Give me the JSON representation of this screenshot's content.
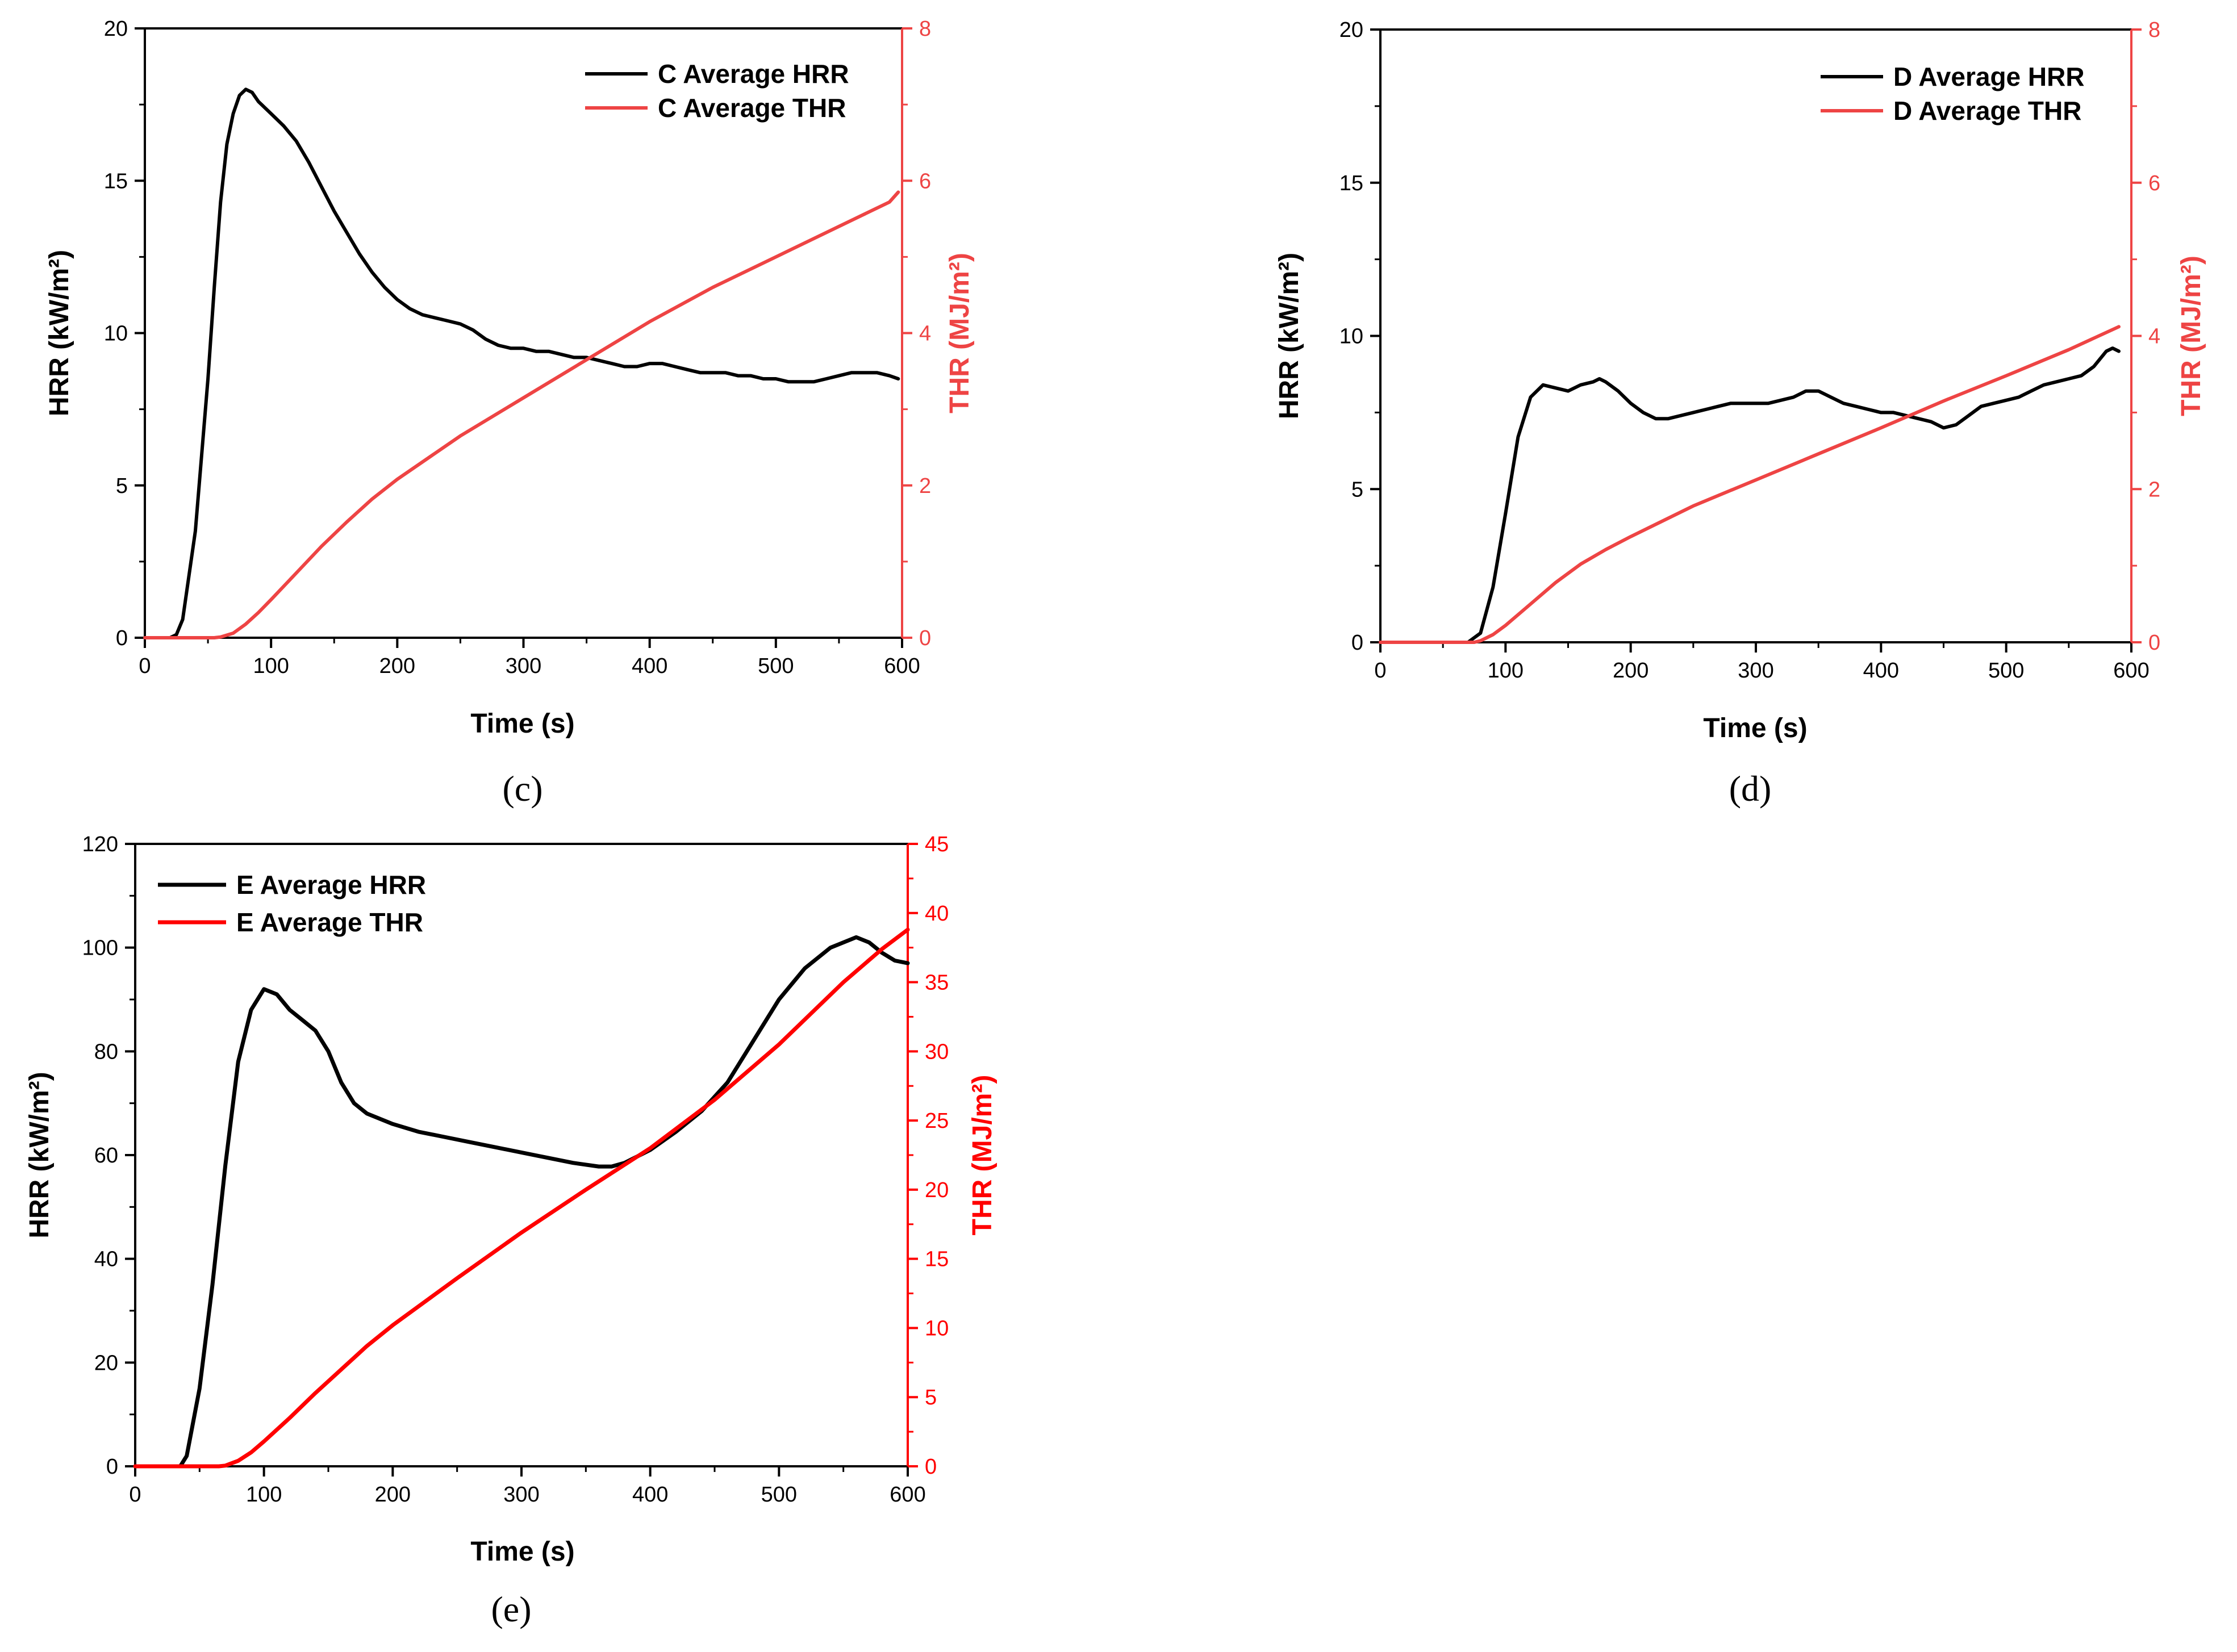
{
  "colors": {
    "hrr": "#000000",
    "thr_cd": "#ee4444",
    "thr_e": "#ff0000",
    "frame": "#000000"
  },
  "chart_data": [
    {
      "id": "c",
      "type": "line",
      "caption": "(c)",
      "xlabel": "Time (s)",
      "ylabel": "HRR (kW/m²)",
      "y2label": "THR (MJ/m²)",
      "xlim": [
        0,
        600
      ],
      "ylim": [
        0,
        20
      ],
      "y2lim": [
        0,
        8
      ],
      "xticks": [
        0,
        100,
        200,
        300,
        400,
        500,
        600
      ],
      "yticks": [
        0,
        5,
        10,
        15,
        20
      ],
      "y2ticks": [
        0,
        2,
        4,
        6,
        8
      ],
      "legend_position": "top-right",
      "series": [
        {
          "name": "C  Average HRR",
          "axis": "left",
          "x": [
            0,
            20,
            25,
            30,
            40,
            50,
            55,
            60,
            65,
            70,
            75,
            80,
            85,
            90,
            100,
            110,
            120,
            130,
            140,
            150,
            160,
            170,
            180,
            190,
            200,
            210,
            220,
            230,
            240,
            250,
            260,
            270,
            280,
            290,
            300,
            310,
            320,
            330,
            340,
            350,
            360,
            370,
            380,
            390,
            400,
            410,
            420,
            430,
            440,
            450,
            460,
            470,
            480,
            490,
            500,
            510,
            520,
            530,
            540,
            550,
            560,
            570,
            580,
            590,
            597
          ],
          "values": [
            0,
            0,
            0.1,
            0.6,
            3.5,
            8.5,
            11.5,
            14.3,
            16.2,
            17.2,
            17.8,
            18.0,
            17.9,
            17.6,
            17.2,
            16.8,
            16.3,
            15.6,
            14.8,
            14.0,
            13.3,
            12.6,
            12.0,
            11.5,
            11.1,
            10.8,
            10.6,
            10.5,
            10.4,
            10.3,
            10.1,
            9.8,
            9.6,
            9.5,
            9.5,
            9.4,
            9.4,
            9.3,
            9.2,
            9.2,
            9.1,
            9.0,
            8.9,
            8.9,
            9.0,
            9.0,
            8.9,
            8.8,
            8.7,
            8.7,
            8.7,
            8.6,
            8.6,
            8.5,
            8.5,
            8.4,
            8.4,
            8.4,
            8.5,
            8.6,
            8.7,
            8.7,
            8.7,
            8.6,
            8.5
          ]
        },
        {
          "name": "C  Average THR",
          "axis": "right",
          "x": [
            0,
            55,
            60,
            70,
            80,
            90,
            100,
            120,
            140,
            160,
            180,
            200,
            250,
            300,
            350,
            400,
            450,
            500,
            550,
            590,
            597
          ],
          "values": [
            0,
            0,
            0.01,
            0.06,
            0.18,
            0.33,
            0.5,
            0.85,
            1.2,
            1.52,
            1.82,
            2.08,
            2.65,
            3.15,
            3.65,
            4.15,
            4.6,
            5.0,
            5.4,
            5.72,
            5.85
          ]
        }
      ]
    },
    {
      "id": "d",
      "type": "line",
      "caption": "(d)",
      "xlabel": "Time (s)",
      "ylabel": "HRR (kW/m²)",
      "y2label": "THR (MJ/m²)",
      "xlim": [
        0,
        600
      ],
      "ylim": [
        0,
        20
      ],
      "y2lim": [
        0,
        8
      ],
      "xticks": [
        0,
        100,
        200,
        300,
        400,
        500,
        600
      ],
      "yticks": [
        0,
        5,
        10,
        15,
        20
      ],
      "y2ticks": [
        0,
        2,
        4,
        6,
        8
      ],
      "legend_position": "top-right",
      "series": [
        {
          "name": "D  Average HRR",
          "axis": "left",
          "x": [
            0,
            70,
            80,
            90,
            100,
            110,
            120,
            130,
            140,
            150,
            160,
            170,
            175,
            180,
            190,
            200,
            210,
            220,
            230,
            240,
            250,
            260,
            270,
            280,
            290,
            300,
            310,
            320,
            330,
            340,
            350,
            360,
            370,
            380,
            390,
            400,
            410,
            420,
            430,
            440,
            450,
            460,
            470,
            480,
            490,
            500,
            510,
            520,
            530,
            540,
            550,
            560,
            570,
            580,
            585,
            590
          ],
          "values": [
            0,
            0,
            0.3,
            1.8,
            4.2,
            6.7,
            8.0,
            8.4,
            8.3,
            8.2,
            8.4,
            8.5,
            8.6,
            8.5,
            8.2,
            7.8,
            7.5,
            7.3,
            7.3,
            7.4,
            7.5,
            7.6,
            7.7,
            7.8,
            7.8,
            7.8,
            7.8,
            7.9,
            8.0,
            8.2,
            8.2,
            8.0,
            7.8,
            7.7,
            7.6,
            7.5,
            7.5,
            7.4,
            7.3,
            7.2,
            7.0,
            7.1,
            7.4,
            7.7,
            7.8,
            7.9,
            8.0,
            8.2,
            8.4,
            8.5,
            8.6,
            8.7,
            9.0,
            9.5,
            9.6,
            9.5
          ]
        },
        {
          "name": "D  Average THR",
          "axis": "right",
          "x": [
            0,
            75,
            80,
            90,
            100,
            120,
            140,
            160,
            180,
            200,
            250,
            300,
            350,
            400,
            450,
            500,
            550,
            590
          ],
          "values": [
            0,
            0,
            0.02,
            0.1,
            0.22,
            0.5,
            0.78,
            1.02,
            1.21,
            1.38,
            1.78,
            2.12,
            2.46,
            2.8,
            3.15,
            3.48,
            3.82,
            4.12
          ]
        }
      ]
    },
    {
      "id": "e",
      "type": "line",
      "caption": "(e)",
      "xlabel": "Time (s)",
      "ylabel": "HRR (kW/m²)",
      "y2label": "THR (MJ/m²)",
      "xlim": [
        0,
        600
      ],
      "ylim": [
        0,
        120
      ],
      "y2lim": [
        0,
        45
      ],
      "xticks": [
        0,
        100,
        200,
        300,
        400,
        500,
        600
      ],
      "yticks": [
        0,
        20,
        40,
        60,
        80,
        100,
        120
      ],
      "y2ticks": [
        0,
        5,
        10,
        15,
        20,
        25,
        30,
        35,
        40,
        45
      ],
      "legend_position": "top-left",
      "series": [
        {
          "name": "E Average HRR",
          "axis": "left",
          "x": [
            0,
            35,
            40,
            50,
            60,
            70,
            80,
            90,
            100,
            110,
            120,
            130,
            140,
            150,
            160,
            170,
            180,
            200,
            220,
            240,
            260,
            280,
            300,
            320,
            340,
            360,
            370,
            380,
            400,
            420,
            440,
            460,
            480,
            500,
            520,
            540,
            560,
            570,
            580,
            590,
            600
          ],
          "values": [
            0,
            0,
            2,
            15,
            35,
            58,
            78,
            88,
            92,
            91,
            88,
            86,
            84,
            80,
            74,
            70,
            68,
            66,
            64.5,
            63.5,
            62.5,
            61.5,
            60.5,
            59.5,
            58.5,
            57.8,
            57.8,
            58.5,
            61,
            64.5,
            68.5,
            74,
            82,
            90,
            96,
            100,
            102,
            101,
            99,
            97.5,
            97
          ]
        },
        {
          "name": "E Average THR",
          "axis": "right",
          "x": [
            0,
            65,
            70,
            80,
            90,
            100,
            120,
            140,
            160,
            180,
            200,
            250,
            300,
            350,
            400,
            450,
            500,
            550,
            580,
            600
          ],
          "values": [
            0,
            0,
            0.05,
            0.4,
            1.0,
            1.8,
            3.5,
            5.3,
            7.0,
            8.7,
            10.2,
            13.6,
            16.9,
            20.0,
            23.0,
            26.5,
            30.5,
            35.0,
            37.4,
            38.8
          ]
        }
      ]
    }
  ]
}
